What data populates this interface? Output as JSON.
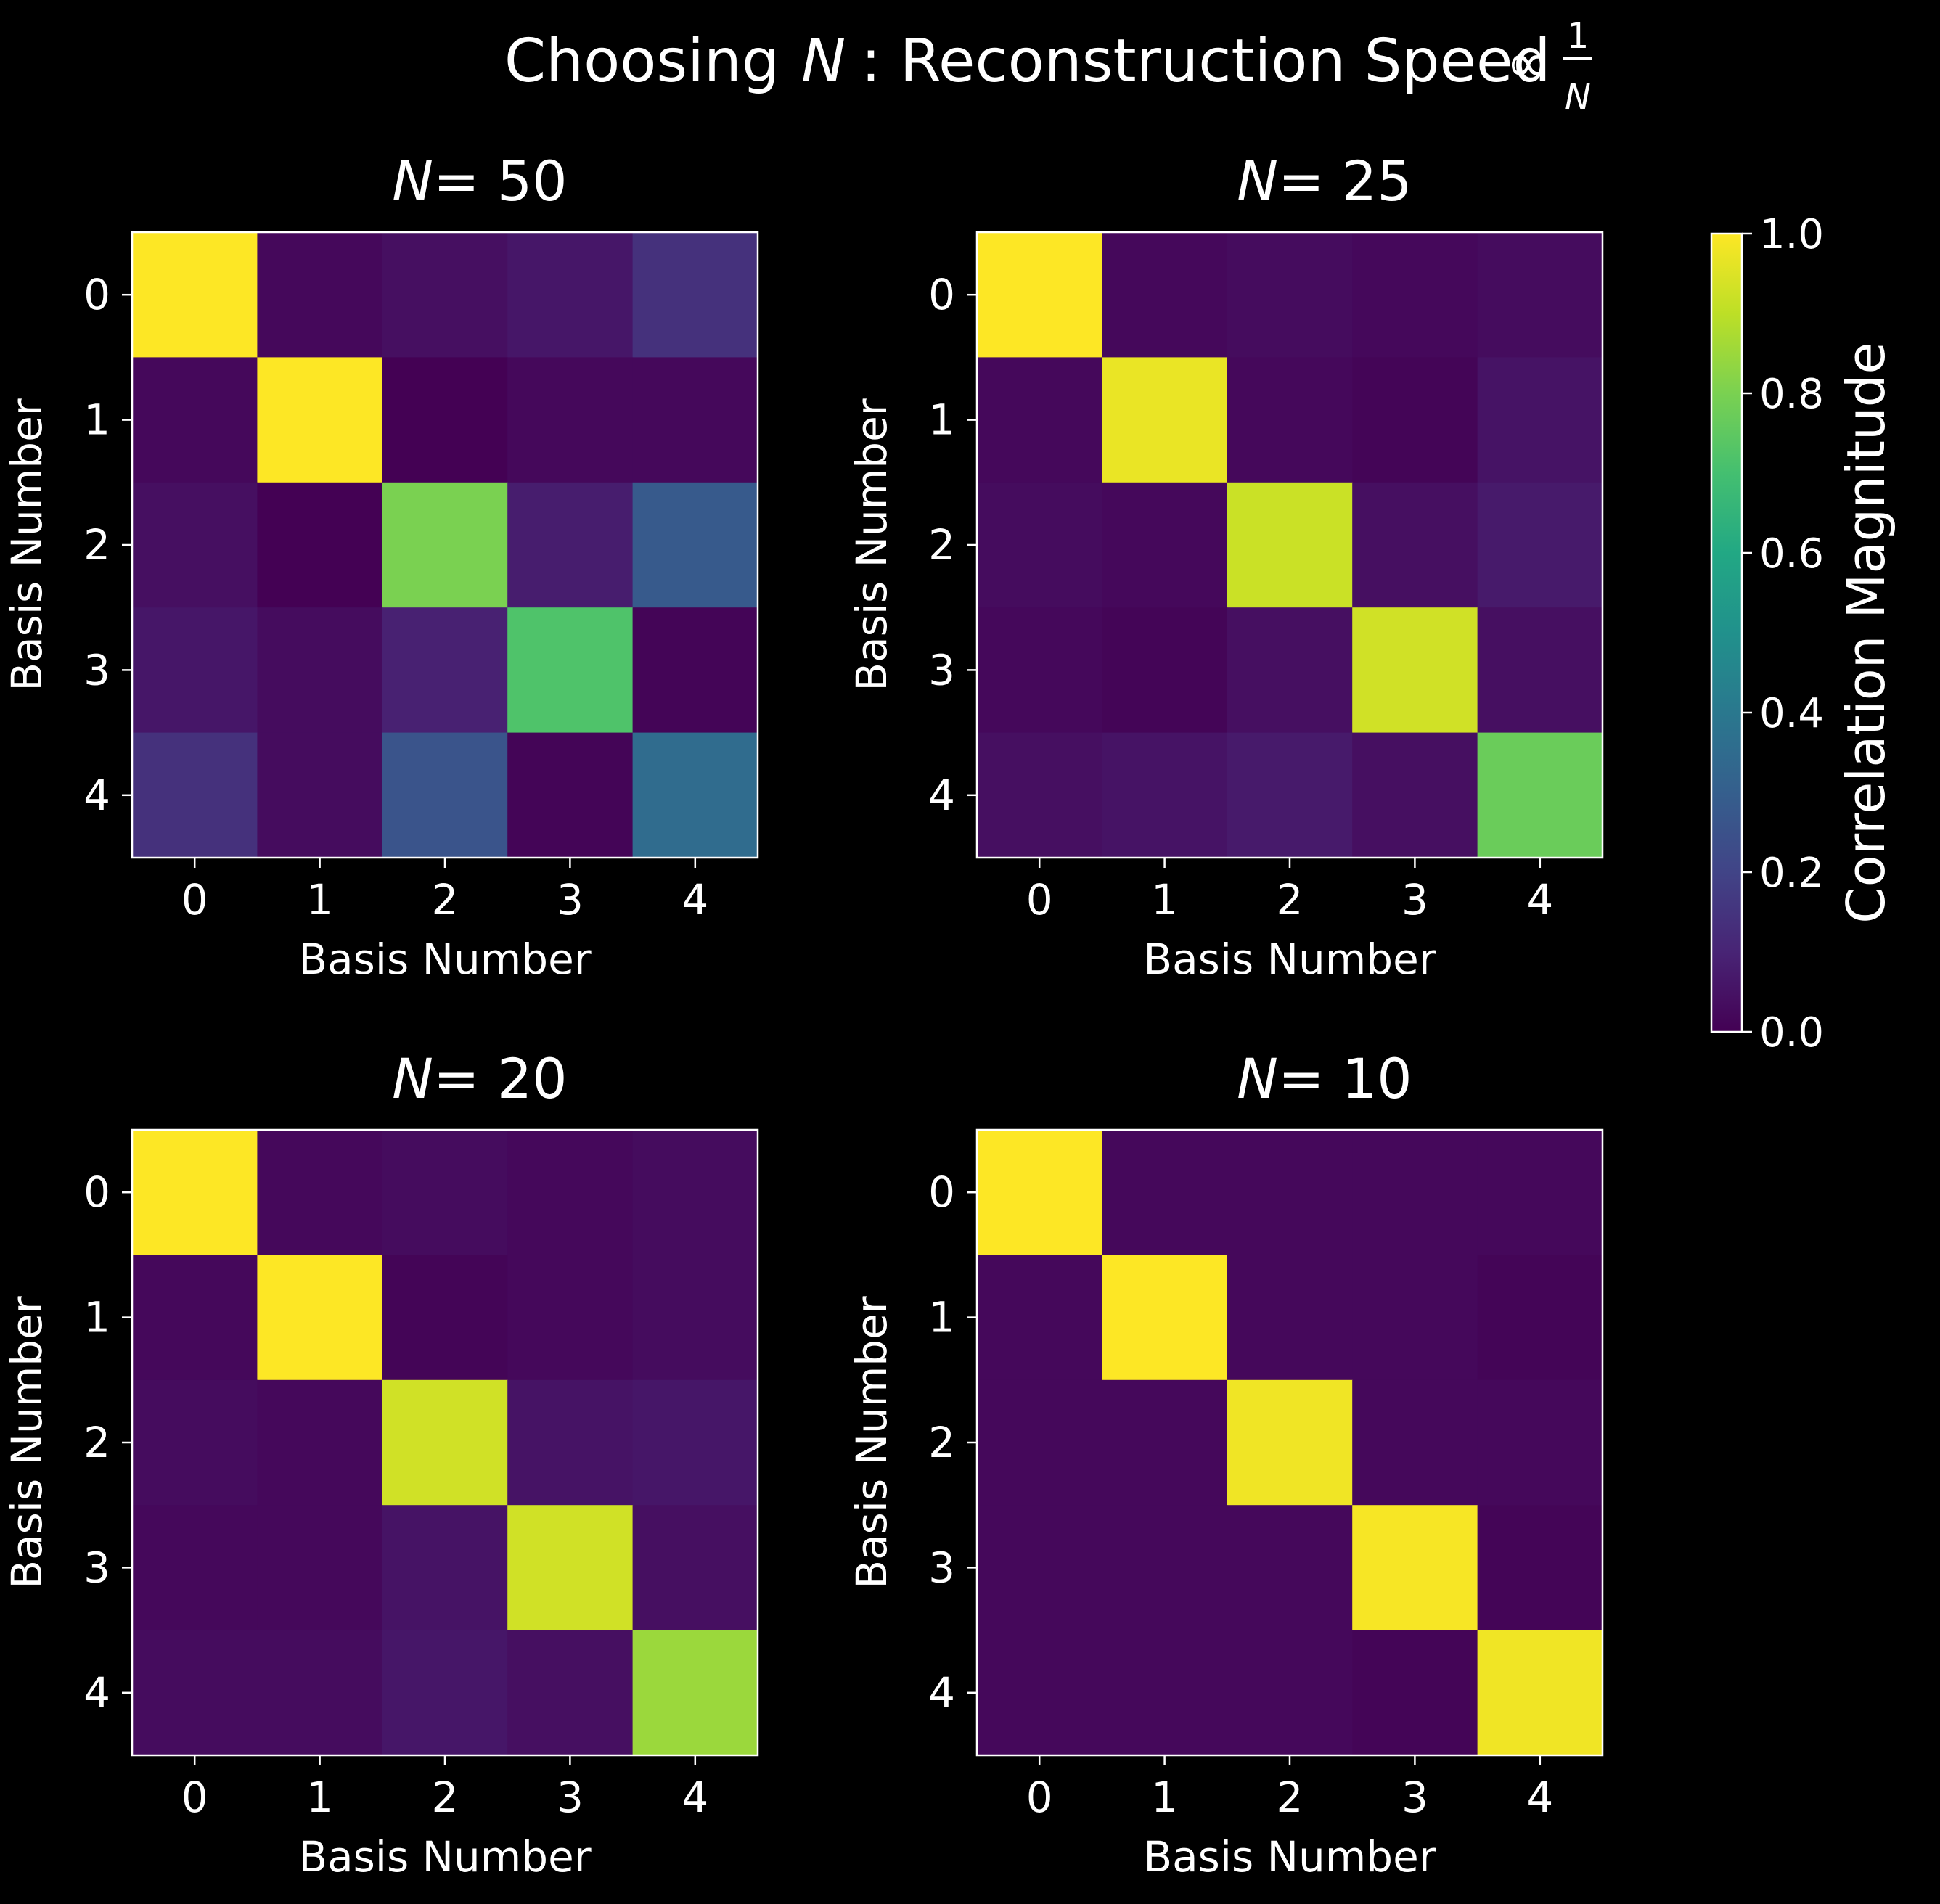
{
  "figure": {
    "title_prefix": "Choosing ",
    "title_var": "N",
    "title_suffix": " : Reconstruction Speed ",
    "title_prop": "∝",
    "title_frac_num": "1",
    "title_frac_den": "N"
  },
  "colorbar": {
    "label": "Correlation Magnitude",
    "ticks": [
      "0.0",
      "0.2",
      "0.4",
      "0.6",
      "0.8",
      "1.0"
    ],
    "range": [
      0,
      1
    ]
  },
  "chart_data": [
    {
      "type": "heatmap",
      "title_var": "N",
      "title_eq": " = 50",
      "xlabel": "Basis Number",
      "ylabel": "Basis Number",
      "x_ticks": [
        "0",
        "1",
        "2",
        "3",
        "4"
      ],
      "y_ticks": [
        "0",
        "1",
        "2",
        "3",
        "4"
      ],
      "values": [
        [
          1.0,
          0.02,
          0.04,
          0.06,
          0.14
        ],
        [
          0.02,
          1.0,
          0.0,
          0.02,
          0.02
        ],
        [
          0.04,
          0.0,
          0.8,
          0.08,
          0.28
        ],
        [
          0.06,
          0.03,
          0.09,
          0.72,
          0.01
        ],
        [
          0.14,
          0.03,
          0.26,
          0.01,
          0.35
        ]
      ]
    },
    {
      "type": "heatmap",
      "title_var": "N",
      "title_eq": " = 25",
      "xlabel": "Basis Number",
      "ylabel": "Basis Number",
      "x_ticks": [
        "0",
        "1",
        "2",
        "3",
        "4"
      ],
      "y_ticks": [
        "0",
        "1",
        "2",
        "3",
        "4"
      ],
      "values": [
        [
          1.0,
          0.02,
          0.03,
          0.02,
          0.03
        ],
        [
          0.02,
          0.97,
          0.02,
          0.01,
          0.05
        ],
        [
          0.03,
          0.02,
          0.92,
          0.04,
          0.07
        ],
        [
          0.02,
          0.01,
          0.04,
          0.93,
          0.04
        ],
        [
          0.04,
          0.05,
          0.07,
          0.04,
          0.77
        ]
      ]
    },
    {
      "type": "heatmap",
      "title_var": "N",
      "title_eq": " = 20",
      "xlabel": "Basis Number",
      "ylabel": "Basis Number",
      "x_ticks": [
        "0",
        "1",
        "2",
        "3",
        "4"
      ],
      "y_ticks": [
        "0",
        "1",
        "2",
        "3",
        "4"
      ],
      "values": [
        [
          1.0,
          0.02,
          0.03,
          0.02,
          0.03
        ],
        [
          0.02,
          1.0,
          0.01,
          0.02,
          0.03
        ],
        [
          0.03,
          0.02,
          0.93,
          0.05,
          0.06
        ],
        [
          0.02,
          0.02,
          0.05,
          0.93,
          0.04
        ],
        [
          0.03,
          0.03,
          0.06,
          0.04,
          0.85
        ]
      ]
    },
    {
      "type": "heatmap",
      "title_var": "N",
      "title_eq": " = 10",
      "xlabel": "Basis Number",
      "ylabel": "Basis Number",
      "x_ticks": [
        "0",
        "1",
        "2",
        "3",
        "4"
      ],
      "y_ticks": [
        "0",
        "1",
        "2",
        "3",
        "4"
      ],
      "values": [
        [
          1.0,
          0.02,
          0.02,
          0.02,
          0.02
        ],
        [
          0.02,
          1.0,
          0.02,
          0.02,
          0.01
        ],
        [
          0.02,
          0.02,
          0.98,
          0.02,
          0.02
        ],
        [
          0.02,
          0.02,
          0.02,
          0.99,
          0.01
        ],
        [
          0.02,
          0.02,
          0.02,
          0.01,
          0.98
        ]
      ]
    }
  ]
}
